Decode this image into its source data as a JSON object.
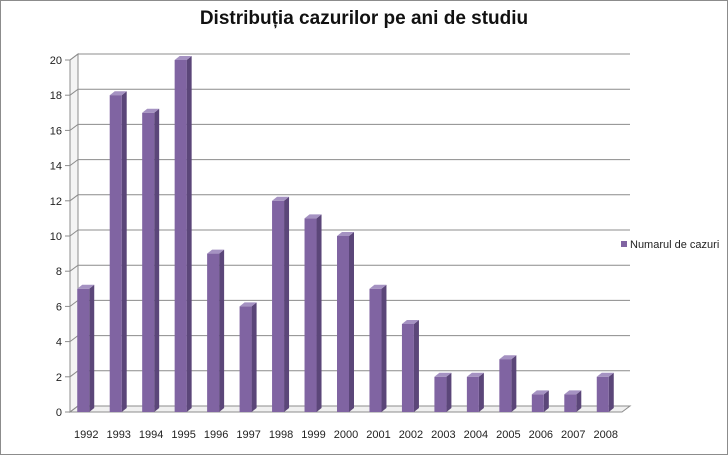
{
  "chart_data": {
    "type": "bar",
    "title": "Distribuția cazurilor pe ani de studiu",
    "categories": [
      "1992",
      "1993",
      "1994",
      "1995",
      "1996",
      "1997",
      "1998",
      "1999",
      "2000",
      "2001",
      "2002",
      "2003",
      "2004",
      "2005",
      "2006",
      "2007",
      "2008"
    ],
    "series": [
      {
        "name": "Numarul de cazuri",
        "values": [
          7,
          18,
          17,
          20,
          9,
          6,
          12,
          11,
          10,
          7,
          5,
          2,
          2,
          3,
          1,
          1,
          2
        ],
        "color": "#8064a2"
      }
    ],
    "xlabel": "",
    "ylabel": "",
    "ylim": [
      0,
      20
    ],
    "yticks": [
      0,
      2,
      4,
      6,
      8,
      10,
      12,
      14,
      16,
      18,
      20
    ],
    "grid": true,
    "legend": "right",
    "style": "3d-column"
  }
}
